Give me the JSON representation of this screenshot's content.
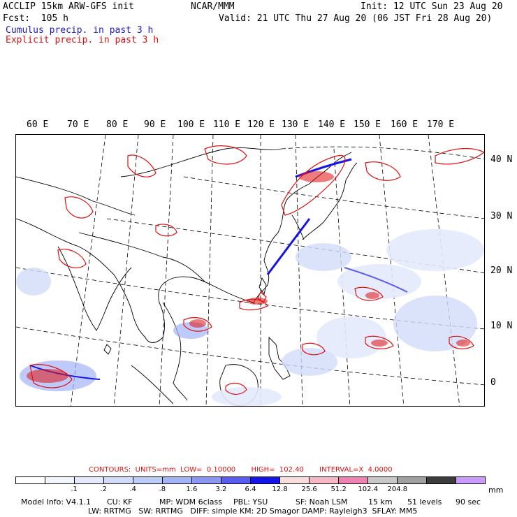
{
  "header": {
    "model_line": "ACCLIP 15km ARW-GFS init",
    "fcst_line": "Fcst:  105 h",
    "org": "NCAR/MMM",
    "init": "Init: 12 UTC Sun 23 Aug 20",
    "valid": "Valid: 21 UTC Thu 27 Aug 20 (06 JST Fri 28 Aug 20)",
    "legend_cumulus": "Cumulus precip. in past 3 h",
    "legend_explicit": "Explicit precip. in past 3 h",
    "colors": {
      "cumulus": "#1a1acc",
      "explicit": "#e01010"
    }
  },
  "map": {
    "lon_labels": [
      "60 E",
      "70 E",
      "80 E",
      "90 E",
      "100 E",
      "110 E",
      "120 E",
      "130 E",
      "140 E",
      "150 E",
      "160 E",
      "170 E"
    ],
    "lat_labels": [
      "40 N",
      "30 N",
      "20 N",
      "10 N",
      "0"
    ]
  },
  "contours": {
    "label": "CONTOURS:",
    "units": "UNITS=mm",
    "low": "LOW=  0.10000",
    "high": "HIGH=  102.40",
    "interval": "INTERVAL=X  4.0000"
  },
  "colorbar": {
    "colors": [
      "#ffffff",
      "#f4f6fe",
      "#e4eafc",
      "#d2dcfa",
      "#bccbf8",
      "#a3b4f6",
      "#8a98f4",
      "#5a5ef0",
      "#1414e6",
      "#f9dcdc",
      "#f5b8c4",
      "#ee82b0",
      "#c8c8c8",
      "#a0a0a0",
      "#3c3c3c",
      "#cc99ff"
    ],
    "labels": [
      ".1",
      ".2",
      ".4",
      ".8",
      "1.6",
      "3.2",
      "6.4",
      "12.8",
      "25.6",
      "51.2",
      "102.4",
      "204.8"
    ],
    "unit": "mm"
  },
  "footer": {
    "line1": [
      "Model Info: V4.1.1",
      "CU: KF",
      "MP: WDM 6class",
      "PBL: YSU",
      "SF: Noah LSM",
      "15 km",
      "51 levels",
      "90 sec"
    ],
    "line2": "LW: RRTMG   SW: RRTMG   DIFF: simple KM: 2D Smagor DAMP: Rayleigh3  SFLAY: MM5"
  }
}
